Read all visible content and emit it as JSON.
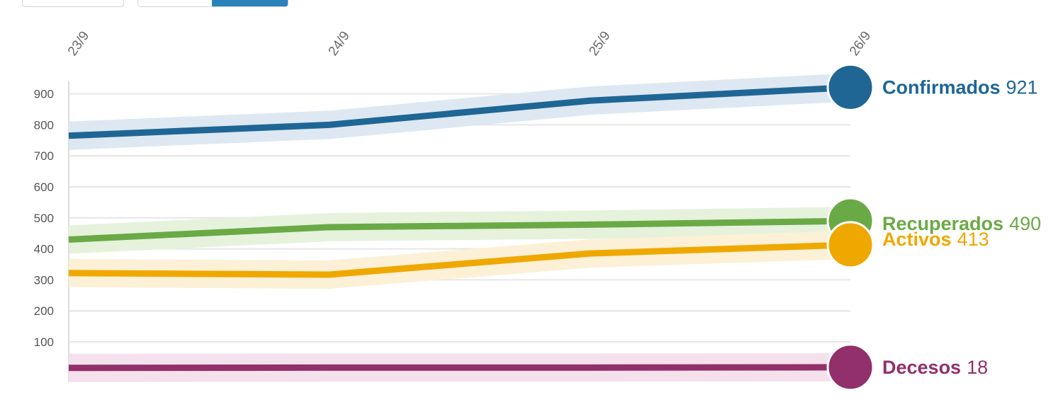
{
  "controls": {
    "toggle_a": "",
    "toggle_b": ""
  },
  "chart_data": {
    "type": "line",
    "x": [
      "23/9",
      "24/9",
      "25/9",
      "26/9"
    ],
    "title": "",
    "xlabel": "",
    "ylabel": "",
    "ylim": [
      0,
      930
    ],
    "yticks": [
      100,
      200,
      300,
      400,
      500,
      600,
      700,
      800,
      900
    ],
    "grid": true,
    "legend": "right end labels",
    "series": [
      {
        "name": "Confirmados",
        "values": [
          765,
          800,
          878,
          921
        ],
        "color": "#1f6695",
        "band": "#dde8f3",
        "label_value": "921"
      },
      {
        "name": "Recuperados",
        "values": [
          430,
          470,
          478,
          490
        ],
        "color": "#6aaa46",
        "band": "#e6f2dc",
        "label_value": "490"
      },
      {
        "name": "Activos",
        "values": [
          322,
          317,
          385,
          413
        ],
        "color": "#efa800",
        "band": "#fcf0d6",
        "label_value": "413"
      },
      {
        "name": "Decesos",
        "values": [
          16,
          17,
          17,
          18
        ],
        "color": "#91306b",
        "band": "#f4e1ec",
        "label_value": "18"
      }
    ]
  }
}
